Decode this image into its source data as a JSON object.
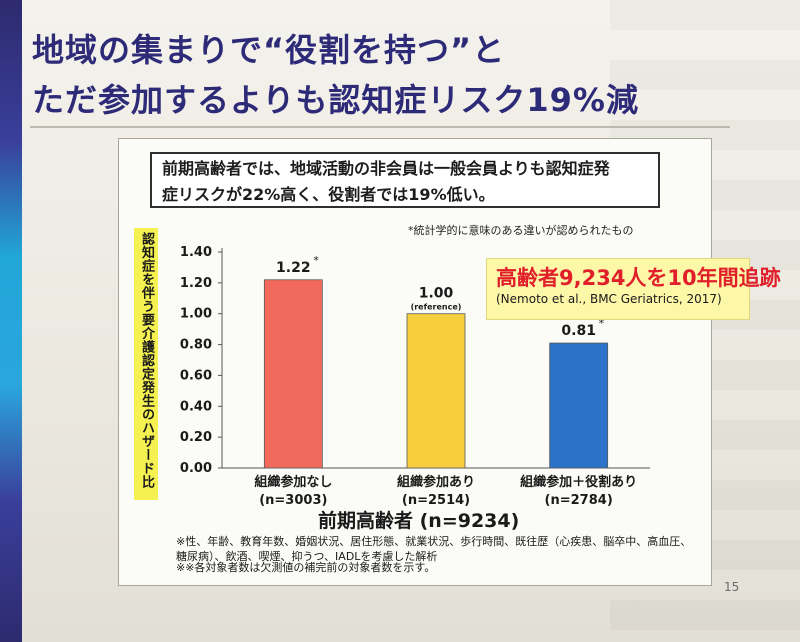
{
  "slide": {
    "title_line1": "地域の集まりで“役割を持つ”と",
    "title_line2": "ただ参加するよりも認知症リスク19%減",
    "page_number": "15"
  },
  "summary": {
    "line1": "前期高齢者では、地域活動の非会員は一般会員よりも認知症発",
    "line2": "症リスクが22%高く、役割者では19%低い。"
  },
  "significance_note": "*統計学的に意味のある違いが認められたもの",
  "cohort": {
    "headline": "高齢者9,234人を10年間追跡",
    "citation": "(Nemoto et al., BMC Geriatrics, 2017)"
  },
  "footnotes": [
    "※性、年齢、教育年数、婚姻状況、居住形態、就業状況、歩行時間、既往歴（心疾患、脳卒中、高血圧、糖尿病）、飲酒、喫煙、抑うつ、IADLを考慮した解析",
    "※※各対象者数は欠測値の補完前の対象者数を示す。"
  ],
  "chart_data": {
    "type": "bar",
    "ylabel": "認知症を伴う要介護認定発生のハザード比",
    "xlabel": "前期高齢者 (n=9234)",
    "ylim": [
      0.0,
      1.4
    ],
    "yticks": [
      "0.00",
      "0.20",
      "0.40",
      "0.60",
      "0.80",
      "1.00",
      "1.20",
      "1.40"
    ],
    "categories": [
      {
        "name": "組織参加なし",
        "n": "(n=3003)",
        "value": 1.22,
        "value_label": "1.22",
        "star": "*",
        "note": "",
        "color": "#f26a5c"
      },
      {
        "name": "組織参加あり",
        "n": "(n=2514)",
        "value": 1.0,
        "value_label": "1.00",
        "star": "",
        "note": "(reference)",
        "color": "#f7cf3e"
      },
      {
        "name": "組織参加＋役割あり",
        "n": "(n=2784)",
        "value": 0.81,
        "value_label": "0.81",
        "star": "*",
        "note": "",
        "color": "#2a73c8"
      }
    ],
    "grid": false,
    "legend": "none"
  }
}
